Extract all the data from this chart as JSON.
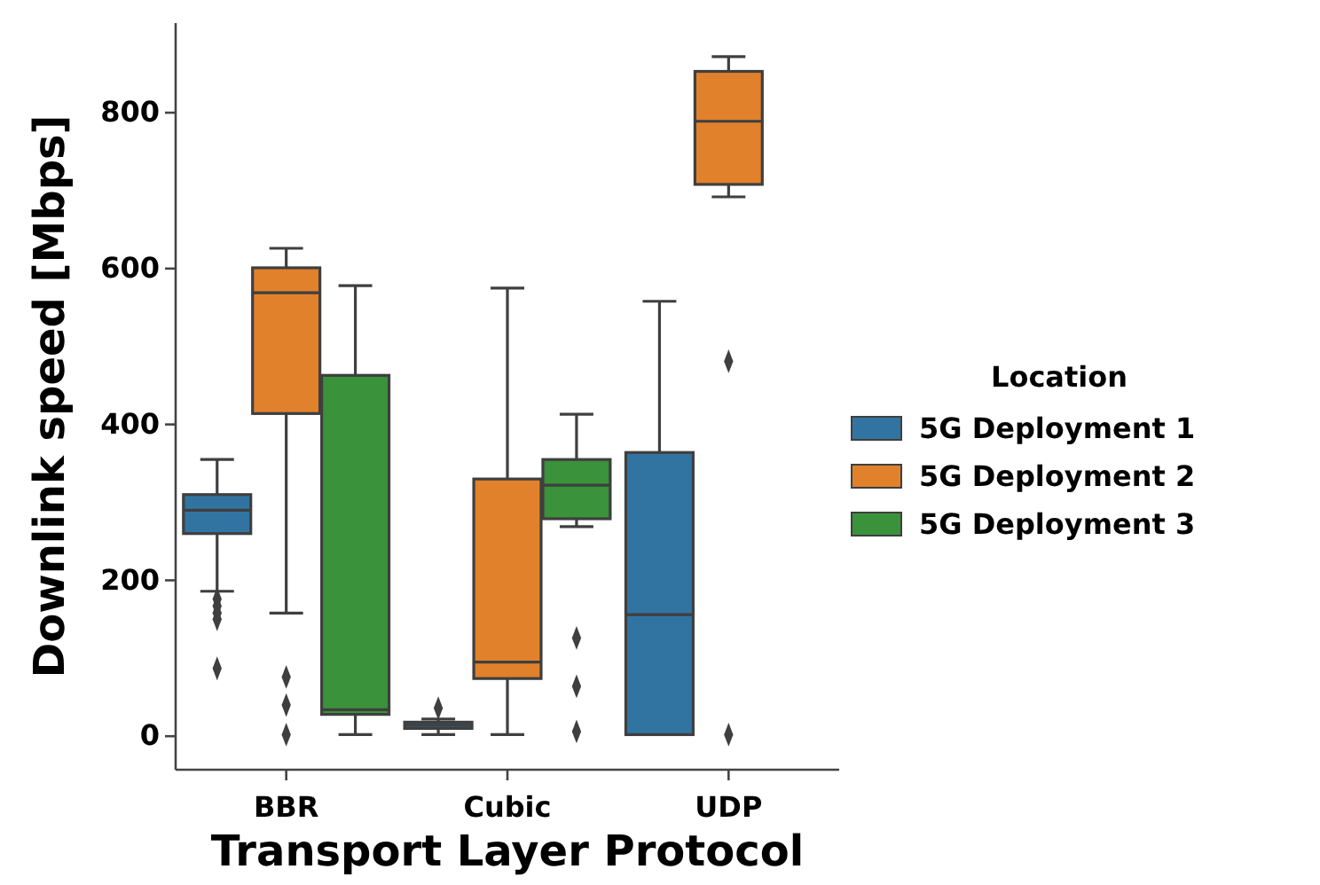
{
  "chart_data": {
    "type": "box",
    "xlabel": "Transport Layer Protocol",
    "ylabel": "Downlink speed [Mbps]",
    "legend_title": "Location",
    "legend": "right",
    "categories": [
      "BBR",
      "Cubic",
      "UDP"
    ],
    "ylim": [
      -43,
      915
    ],
    "yticks": [
      0,
      200,
      400,
      600,
      800
    ],
    "marker": "diamond",
    "series": [
      {
        "name": "5G Deployment 1",
        "color": "#3274a1",
        "boxes": [
          {
            "low": 186,
            "q1": 260,
            "median": 290,
            "q3": 310,
            "high": 355,
            "outliers": [
              176,
              167,
              158,
              150,
              87
            ]
          },
          {
            "low": 2,
            "q1": 10,
            "median": 14,
            "q3": 18,
            "high": 22,
            "outliers": [
              36
            ]
          },
          {
            "low": 2,
            "q1": 2,
            "median": 156,
            "q3": 364,
            "high": 558
          }
        ]
      },
      {
        "name": "5G Deployment 2",
        "color": "#e1812c",
        "boxes": [
          {
            "low": 158,
            "q1": 414,
            "median": 569,
            "q3": 601,
            "high": 626,
            "outliers": [
              76,
              40,
              2
            ]
          },
          {
            "low": 2,
            "q1": 74,
            "median": 95,
            "q3": 330,
            "high": 575
          },
          {
            "low": 692,
            "q1": 708,
            "median": 789,
            "q3": 853,
            "high": 872,
            "outliers": [
              481,
              2
            ]
          }
        ]
      },
      {
        "name": "5G Deployment 3",
        "color": "#3a923a",
        "boxes": [
          {
            "low": 2,
            "q1": 28,
            "median": 34,
            "q3": 463,
            "high": 578
          },
          {
            "low": 269,
            "q1": 279,
            "median": 322,
            "q3": 355,
            "high": 413,
            "outliers": [
              126,
              64,
              6
            ]
          },
          null
        ]
      }
    ]
  }
}
